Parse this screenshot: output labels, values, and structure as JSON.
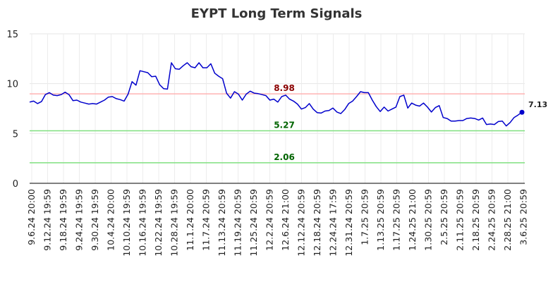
{
  "chart_data": {
    "type": "line",
    "title": "EYPT Long Term Signals",
    "ylim": [
      0,
      15
    ],
    "yticks": [
      0,
      5,
      10,
      15
    ],
    "grid": true,
    "xtick_labels": [
      "9.6.24 20:00",
      "9.12.24 19:59",
      "9.18.24 19:59",
      "9.24.24 19:59",
      "9.30.24 19:59",
      "10.4.24 20:00",
      "10.10.24 19:59",
      "10.16.24 19:59",
      "10.22.24 19:59",
      "10.28.24 19:59",
      "11.1.24 20:00",
      "11.7.24 20:59",
      "11.13.24 20:59",
      "11.19.24 20:59",
      "11.25.24 20:59",
      "12.2.24 20:59",
      "12.6.24 21:00",
      "12.12.24 20:59",
      "12.18.24 20:59",
      "12.24.24 17:59",
      "12.31.24 20:59",
      "1.7.25 20:59",
      "1.13.25 20:59",
      "1.17.25 20:59",
      "1.24.25 21:00",
      "1.30.25 20:59",
      "2.5.25 20:59",
      "2.11.25 20:59",
      "2.18.25 20:59",
      "2.24.25 20:59",
      "2.28.25 21:00",
      "3.6.25 20:59"
    ],
    "series": [
      {
        "color": "#0000cc",
        "values": [
          8.15,
          8.25,
          8.0,
          8.2,
          8.9,
          9.1,
          8.85,
          8.8,
          8.9,
          9.15,
          8.9,
          8.3,
          8.35,
          8.15,
          8.05,
          7.95,
          8.0,
          7.95,
          8.15,
          8.35,
          8.65,
          8.7,
          8.5,
          8.4,
          8.25,
          8.95,
          10.2,
          9.85,
          11.3,
          11.2,
          11.1,
          10.7,
          10.75,
          9.9,
          9.5,
          9.45,
          12.1,
          11.5,
          11.45,
          11.8,
          12.1,
          11.7,
          11.6,
          12.1,
          11.6,
          11.6,
          12.0,
          11.05,
          10.75,
          10.5,
          9.05,
          8.55,
          9.2,
          8.95,
          8.35,
          8.95,
          9.25,
          9.05,
          9.0,
          8.9,
          8.8,
          8.35,
          8.45,
          8.15,
          8.7,
          8.85,
          8.45,
          8.25,
          7.95,
          7.45,
          7.6,
          8.0,
          7.45,
          7.1,
          7.05,
          7.25,
          7.3,
          7.55,
          7.15,
          7.0,
          7.4,
          8.0,
          8.25,
          8.7,
          9.2,
          9.1,
          9.1,
          8.35,
          7.7,
          7.2,
          7.65,
          7.25,
          7.45,
          7.65,
          8.7,
          8.85,
          7.55,
          8.05,
          7.85,
          7.75,
          8.05,
          7.65,
          7.15,
          7.6,
          7.8,
          6.6,
          6.5,
          6.25,
          6.25,
          6.3,
          6.3,
          6.5,
          6.55,
          6.5,
          6.35,
          6.55,
          5.9,
          5.95,
          5.9,
          6.2,
          6.25,
          5.75,
          6.1,
          6.6,
          6.85,
          7.13
        ]
      }
    ],
    "levels": [
      {
        "value": 8.98,
        "label": "8.98",
        "line_color": "#ffb3b3",
        "text_color": "#8b0000"
      },
      {
        "value": 5.27,
        "label": "5.27",
        "line_color": "#80e080",
        "text_color": "#006400"
      },
      {
        "value": 2.06,
        "label": "2.06",
        "line_color": "#80e080",
        "text_color": "#006400"
      }
    ],
    "last_value_label": "7.13"
  }
}
